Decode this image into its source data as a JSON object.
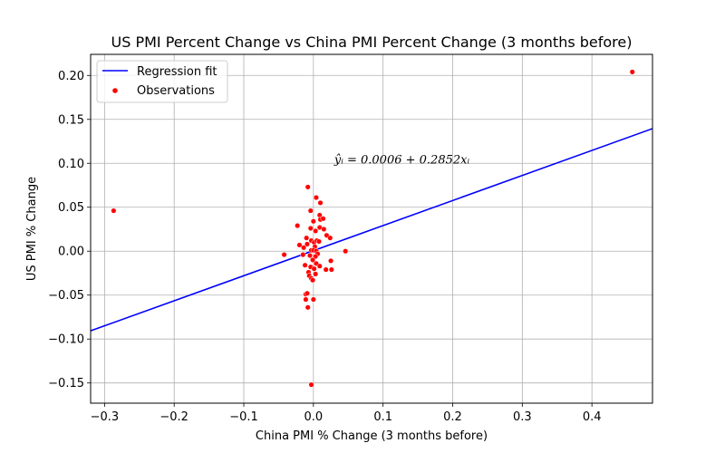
{
  "chart_data": {
    "type": "scatter",
    "title": "US PMI Percent Change vs China PMI Percent Change (3 months before)",
    "xlabel": "China PMI % Change (3 months before)",
    "ylabel": "US PMI % Change",
    "xlim": [
      -0.32,
      0.487
    ],
    "ylim": [
      -0.173,
      0.224
    ],
    "xticks": [
      -0.3,
      -0.2,
      -0.1,
      0.0,
      0.1,
      0.2,
      0.3,
      0.4
    ],
    "xtick_labels": [
      "−0.3",
      "−0.2",
      "−0.1",
      "0.0",
      "0.1",
      "0.2",
      "0.3",
      "0.4"
    ],
    "yticks": [
      -0.15,
      -0.1,
      -0.05,
      0.0,
      0.05,
      0.1,
      0.15,
      0.2
    ],
    "ytick_labels": [
      "−0.15",
      "−0.10",
      "−0.05",
      "0.00",
      "0.05",
      "0.10",
      "0.15",
      "0.20"
    ],
    "grid": true,
    "legend": {
      "position": "top-left",
      "entries": [
        "Regression fit",
        "Observations"
      ]
    },
    "regression": {
      "name": "Regression fit",
      "intercept": 0.0006,
      "slope": 0.2852,
      "color": "#0000ff"
    },
    "annotation": {
      "text": "ŷᵢ = 0.0006 + 0.2852xᵢ",
      "x": 0.03,
      "y": 0.1
    },
    "series": [
      {
        "name": "Observations",
        "color": "#ff0000",
        "points": [
          [
            -0.287,
            0.046
          ],
          [
            0.458,
            0.204
          ],
          [
            -0.003,
            -0.152
          ],
          [
            -0.042,
            -0.004
          ],
          [
            0.046,
            0.0
          ],
          [
            -0.008,
            0.073
          ],
          [
            0.004,
            0.061
          ],
          [
            -0.004,
            0.046
          ],
          [
            0.01,
            0.055
          ],
          [
            0.009,
            0.041
          ],
          [
            0.01,
            0.036
          ],
          [
            0.014,
            0.037
          ],
          [
            0.0,
            0.034
          ],
          [
            -0.023,
            0.029
          ],
          [
            -0.004,
            0.026
          ],
          [
            0.003,
            0.023
          ],
          [
            0.009,
            0.027
          ],
          [
            0.015,
            0.025
          ],
          [
            0.019,
            0.018
          ],
          [
            0.024,
            0.015
          ],
          [
            -0.01,
            0.015
          ],
          [
            -0.003,
            0.012
          ],
          [
            0.001,
            0.01
          ],
          [
            0.005,
            0.012
          ],
          [
            0.008,
            0.011
          ],
          [
            -0.02,
            0.007
          ],
          [
            -0.009,
            0.008
          ],
          [
            -0.014,
            0.004
          ],
          [
            0.002,
            0.005
          ],
          [
            -0.003,
            0.001
          ],
          [
            0.0,
            0.001
          ],
          [
            0.004,
            0.0
          ],
          [
            0.006,
            -0.003
          ],
          [
            -0.015,
            -0.004
          ],
          [
            -0.005,
            -0.005
          ],
          [
            0.003,
            -0.006
          ],
          [
            -0.001,
            -0.01
          ],
          [
            -0.012,
            -0.016
          ],
          [
            0.004,
            -0.014
          ],
          [
            0.025,
            -0.011
          ],
          [
            -0.004,
            -0.018
          ],
          [
            0.001,
            -0.02
          ],
          [
            0.009,
            -0.017
          ],
          [
            0.018,
            -0.021
          ],
          [
            0.026,
            -0.021
          ],
          [
            -0.007,
            -0.024
          ],
          [
            0.003,
            -0.026
          ],
          [
            -0.006,
            -0.028
          ],
          [
            -0.003,
            -0.031
          ],
          [
            -0.001,
            -0.033
          ],
          [
            -0.011,
            -0.049
          ],
          [
            -0.009,
            -0.048
          ],
          [
            -0.011,
            -0.055
          ],
          [
            0.0,
            -0.055
          ],
          [
            -0.008,
            -0.064
          ]
        ]
      }
    ]
  }
}
